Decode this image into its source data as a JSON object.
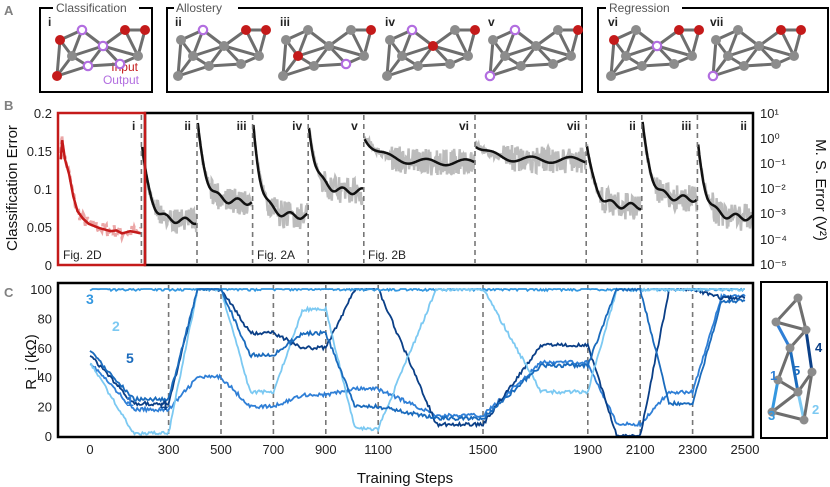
{
  "panel_labels": {
    "a": "A",
    "b": "B",
    "c": "C"
  },
  "colors": {
    "class_red": "#c41a1a",
    "class_red_light": "#eba6a6",
    "output_purple": "#b26ee0",
    "node_gray": "#8c8c8c",
    "edge_gray": "#6e6e6e",
    "error_black": "#111111",
    "error_gray": "#bcbcbc",
    "resistor_colors": [
      "#2f7fd6",
      "#0a3f87",
      "#3598e0",
      "#7cc9f2",
      "#1a6bbd"
    ]
  },
  "panel_a": {
    "groups": [
      {
        "title": "Classification",
        "networks": [
          {
            "label": "i"
          }
        ]
      },
      {
        "title": "Allostery",
        "networks": [
          {
            "label": "ii"
          },
          {
            "label": "iii"
          },
          {
            "label": "iv"
          },
          {
            "label": "v"
          }
        ]
      },
      {
        "title": "Regression",
        "networks": [
          {
            "label": "vi"
          },
          {
            "label": "vii"
          }
        ]
      }
    ],
    "legend_input": "Input",
    "legend_output": "Output"
  },
  "chart_data": [
    {
      "type": "line",
      "id": "classification-error",
      "ylabel": "Classification Error",
      "ylim": [
        0,
        0.2
      ],
      "yticks": [
        "0.2",
        "0.15",
        "0.1",
        "0.05",
        "0"
      ],
      "xlim": [
        0,
        300
      ],
      "x": [
        0,
        15,
        25,
        40,
        55,
        70,
        90,
        110,
        130,
        150,
        170,
        190,
        210,
        230,
        260,
        300
      ],
      "series": [
        {
          "name": "classification error (smoothed)",
          "values": [
            0.14,
            0.166,
            0.14,
            0.12,
            0.09,
            0.07,
            0.06,
            0.053,
            0.05,
            0.047,
            0.045,
            0.043,
            0.044,
            0.04,
            0.043,
            0.04
          ]
        }
      ],
      "annotation": "Fig. 2D"
    },
    {
      "type": "line",
      "id": "ms-error",
      "ylabel": "M. S. Error (V²)",
      "yscale": "log",
      "ylim": [
        1e-05,
        10
      ],
      "yticks": [
        "10¹",
        "10⁰",
        "10⁻¹",
        "10⁻²",
        "10⁻³",
        "10⁻⁴",
        "10⁻⁵"
      ],
      "xlim": [
        300,
        2500
      ],
      "segments": [
        {
          "task": "ii",
          "x": [
            300,
            2500
          ],
          "start_error": 1.0,
          "end_error": 0.0005
        },
        {
          "task": "iii",
          "x": [
            500,
            700
          ],
          "start_error": 8.0,
          "end_error": 0.003
        },
        {
          "task": "iv",
          "x": [
            700,
            900
          ],
          "start_error": 8.0,
          "end_error": 0.0008
        },
        {
          "task": "v",
          "x": [
            900,
            1100
          ],
          "start_error": 6.0,
          "end_error": 0.008
        },
        {
          "task": "vi",
          "x": [
            1100,
            1500
          ],
          "start_error": 1.5,
          "end_error": 0.12
        },
        {
          "task": "vii",
          "x": [
            1500,
            1900
          ],
          "start_error": 0.7,
          "end_error": 0.15
        },
        {
          "task": "ii",
          "x": [
            1900,
            2100
          ],
          "start_error": 1.0,
          "end_error": 0.002
        },
        {
          "task": "iii",
          "x": [
            2100,
            2300
          ],
          "start_error": 9.0,
          "end_error": 0.004
        },
        {
          "task": "ii",
          "x": [
            2300,
            2500
          ],
          "start_error": 1.0,
          "end_error": 0.0007
        }
      ],
      "annotations": [
        "Fig. 2A",
        "Fig. 2B"
      ]
    },
    {
      "type": "line",
      "id": "resistances",
      "ylabel": "R_i (kΩ)",
      "xlabel": "Training Steps",
      "ylim": [
        0,
        100
      ],
      "yticks": [
        "0",
        "20",
        "40",
        "60",
        "80",
        "100"
      ],
      "xlim": [
        0,
        2500
      ],
      "xticks": [
        "0",
        "300",
        "500",
        "700",
        "900",
        "1100",
        "1500",
        "1900",
        "2100",
        "2300",
        "2500"
      ],
      "x": [
        0,
        300,
        500,
        700,
        900,
        1100,
        1500,
        1900,
        2100,
        2300,
        2500
      ],
      "series": [
        {
          "name": "1",
          "values": [
            50,
            18,
            40,
            20,
            28,
            32,
            14,
            50,
            8,
            30,
            95
          ]
        },
        {
          "name": "2",
          "values": [
            55,
            22,
            100,
            70,
            60,
            100,
            8,
            62,
            0,
            100,
            94
          ]
        },
        {
          "name": "3",
          "values": [
            100,
            100,
            100,
            100,
            100,
            100,
            100,
            100,
            100,
            100,
            100
          ]
        },
        {
          "name": "4",
          "values": [
            50,
            2,
            100,
            30,
            86,
            5,
            100,
            30,
            100,
            100,
            100
          ]
        },
        {
          "name": "5",
          "values": [
            58,
            25,
            100,
            55,
            70,
            20,
            12,
            48,
            100,
            22,
            92
          ]
        }
      ],
      "series_labels": [
        "3",
        "2",
        "5",
        "1",
        "4"
      ]
    }
  ],
  "task_markers": [
    {
      "label": "i",
      "x": 300
    },
    {
      "label": "ii",
      "x": 500
    },
    {
      "label": "iii",
      "x": 700
    },
    {
      "label": "iv",
      "x": 900
    },
    {
      "label": "v",
      "x": 1100
    },
    {
      "label": "vi",
      "x": 1500
    },
    {
      "label": "vii",
      "x": 1900
    },
    {
      "label": "ii",
      "x": 2100
    },
    {
      "label": "iii",
      "x": 2300
    },
    {
      "label": "ii",
      "x": 2500
    }
  ],
  "network_inset": {
    "edge_labels": [
      "1",
      "4",
      "5",
      "3",
      "2"
    ]
  }
}
